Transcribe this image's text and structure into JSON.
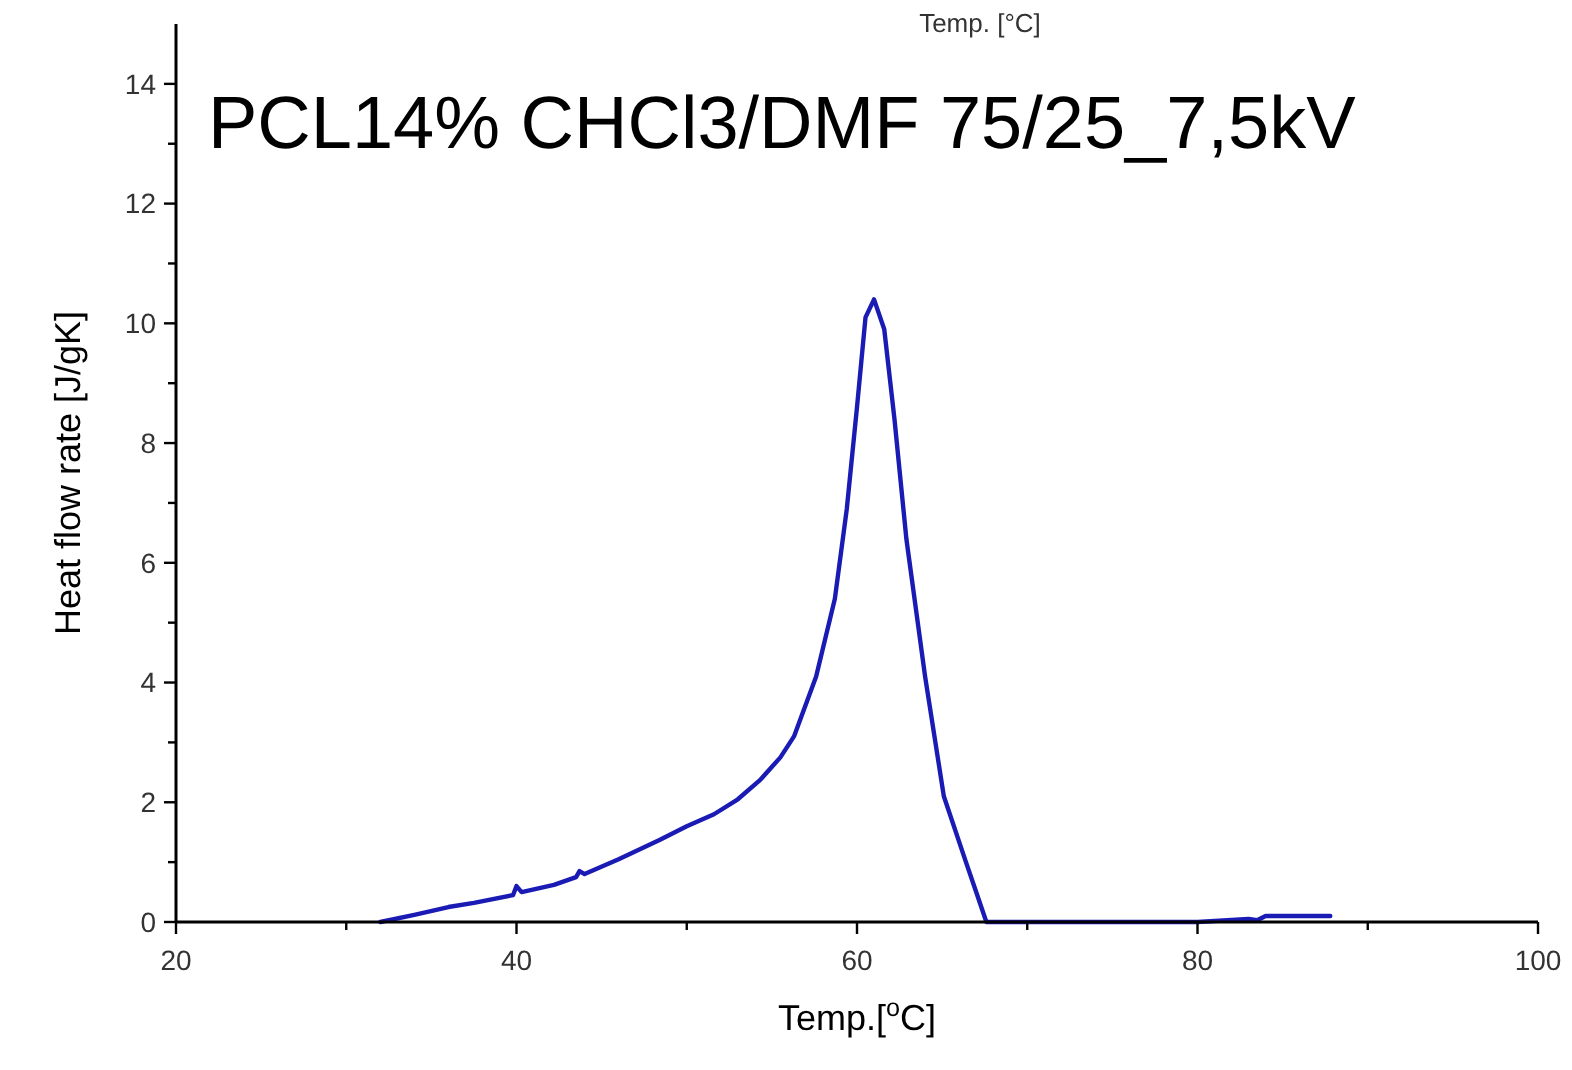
{
  "chart_data": {
    "type": "line",
    "title": "PCL14% CHCl3/DMF 75/25_7,5kV",
    "xlabel": "Temp.[$^{o}$C]",
    "ylabel": "Heat flow rate [J/gK]",
    "annotations": [
      "Temp. [°C]"
    ],
    "xlim": [
      20,
      100
    ],
    "ylim": [
      0,
      15
    ],
    "xticks": [
      20,
      {
        "value": 30,
        "label": null
      },
      40,
      {
        "value": 50,
        "label": null
      },
      60,
      {
        "value": 70,
        "label": null
      },
      80,
      {
        "value": 90,
        "label": null
      },
      100
    ],
    "yticks": [
      0,
      {
        "value": 1,
        "label": null
      },
      2,
      {
        "value": 3,
        "label": null
      },
      4,
      {
        "value": 5,
        "label": null
      },
      6,
      {
        "value": 7,
        "label": null
      },
      8,
      {
        "value": 9,
        "label": null
      },
      10,
      {
        "value": 11,
        "label": null
      },
      12,
      {
        "value": 13,
        "label": null
      },
      14
    ],
    "grid": false,
    "marker": "none",
    "line_style": "solid",
    "series": [
      {
        "color": "#1a1ab4",
        "x": [
          32,
          34,
          36,
          37.5,
          39.8,
          40,
          40.3,
          42.2,
          43.5,
          43.7,
          44,
          46,
          48.4,
          50,
          51.6,
          53,
          54.3,
          55.5,
          56.3,
          57.6,
          58.7,
          59.4,
          60,
          60.5,
          61,
          61.6,
          62.2,
          62.9,
          64,
          65.1,
          66.4,
          67,
          67.6,
          70,
          75,
          80,
          83,
          83.5,
          84,
          86,
          87.8
        ],
        "values": [
          0,
          0.12,
          0.25,
          0.32,
          0.45,
          0.6,
          0.5,
          0.62,
          0.75,
          0.85,
          0.8,
          1.05,
          1.37,
          1.6,
          1.8,
          2.05,
          2.37,
          2.75,
          3.1,
          4.1,
          5.4,
          6.9,
          8.6,
          10.1,
          10.4,
          9.9,
          8.4,
          6.4,
          4.1,
          2.1,
          1.0,
          0.5,
          0,
          0,
          0,
          0,
          0.05,
          0.03,
          0.1,
          0.1,
          0.1
        ]
      }
    ]
  }
}
